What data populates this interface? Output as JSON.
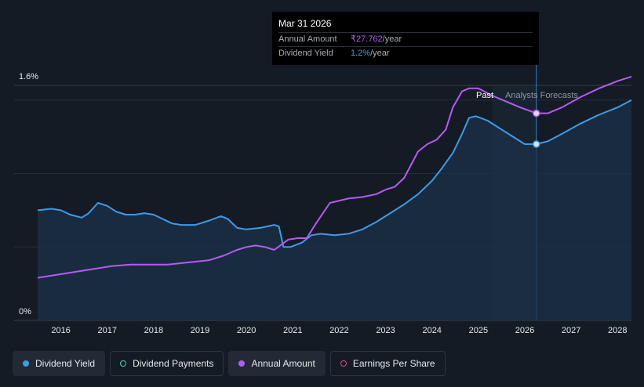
{
  "tooltip": {
    "date": "Mar 31 2026",
    "amount_label": "Annual Amount",
    "amount_value": "₹27.762",
    "amount_unit": "/year",
    "yield_label": "Dividend Yield",
    "yield_value": "1.2%",
    "yield_unit": "/year"
  },
  "past_label": "Past",
  "forecast_label": "Analysts Forecasts",
  "legend": [
    {
      "label": "Dividend Yield",
      "color": "#3d9be9",
      "style": "filled",
      "active": true
    },
    {
      "label": "Dividend Payments",
      "color": "#48d1b5",
      "style": "hollow",
      "active": false
    },
    {
      "label": "Annual Amount",
      "color": "#b55bf5",
      "style": "filled",
      "active": true
    },
    {
      "label": "Earnings Per Share",
      "color": "#e0457b",
      "style": "hollow",
      "active": false
    }
  ],
  "colors": {
    "background": "#151b24",
    "yield": "#3d9be9",
    "amount": "#b55bf5",
    "area": "#1b3148",
    "forecast_band": "#1c2a3b"
  },
  "chart_data": {
    "type": "line",
    "ylabels": [
      "1.6%",
      "0%"
    ],
    "ylim": [
      0,
      1.6
    ],
    "xlim": [
      2015.5,
      2028.3
    ],
    "x_ticks": [
      "2016",
      "2017",
      "2018",
      "2019",
      "2020",
      "2021",
      "2022",
      "2023",
      "2024",
      "2025",
      "2026",
      "2027",
      "2028"
    ],
    "past_end": 2025.3,
    "forecast_start": 2025.4,
    "highlight_x": 2026.25,
    "grid": true,
    "series": [
      {
        "name": "Dividend Yield",
        "unit": "%",
        "x": [
          2015.5,
          2015.8,
          2016.0,
          2016.2,
          2016.45,
          2016.6,
          2016.8,
          2017.0,
          2017.2,
          2017.4,
          2017.6,
          2017.8,
          2018.0,
          2018.2,
          2018.4,
          2018.6,
          2018.9,
          2019.2,
          2019.45,
          2019.6,
          2019.8,
          2020.0,
          2020.3,
          2020.6,
          2020.7,
          2020.8,
          2020.95,
          2021.2,
          2021.4,
          2021.6,
          2021.9,
          2022.2,
          2022.5,
          2022.8,
          2023.1,
          2023.4,
          2023.7,
          2024.0,
          2024.2,
          2024.45,
          2024.65,
          2024.8,
          2024.95,
          2025.2,
          2025.5,
          2025.75,
          2026.0,
          2026.25,
          2026.5,
          2026.8,
          2027.2,
          2027.6,
          2028.0,
          2028.3
        ],
        "values": [
          0.75,
          0.76,
          0.75,
          0.72,
          0.7,
          0.73,
          0.8,
          0.78,
          0.74,
          0.72,
          0.72,
          0.73,
          0.72,
          0.69,
          0.66,
          0.65,
          0.65,
          0.68,
          0.71,
          0.69,
          0.63,
          0.62,
          0.63,
          0.65,
          0.64,
          0.5,
          0.5,
          0.53,
          0.58,
          0.59,
          0.58,
          0.59,
          0.62,
          0.67,
          0.73,
          0.79,
          0.86,
          0.95,
          1.03,
          1.14,
          1.27,
          1.38,
          1.39,
          1.36,
          1.3,
          1.25,
          1.2,
          1.2,
          1.22,
          1.27,
          1.34,
          1.4,
          1.45,
          1.5
        ]
      },
      {
        "name": "Annual Amount",
        "unit": "₹/year",
        "x": [
          2015.5,
          2015.9,
          2016.3,
          2016.7,
          2017.1,
          2017.5,
          2017.9,
          2018.3,
          2018.6,
          2018.9,
          2019.2,
          2019.5,
          2019.8,
          2020.0,
          2020.2,
          2020.4,
          2020.6,
          2020.9,
          2021.1,
          2021.3,
          2021.5,
          2021.8,
          2022.2,
          2022.5,
          2022.8,
          2023.0,
          2023.2,
          2023.4,
          2023.7,
          2023.9,
          2024.1,
          2024.3,
          2024.45,
          2024.65,
          2024.8,
          2025.0,
          2025.3,
          2025.6,
          2025.9,
          2026.25,
          2026.5,
          2026.8,
          2027.2,
          2027.6,
          2028.0,
          2028.3
        ],
        "values": [
          0.29,
          0.31,
          0.33,
          0.35,
          0.37,
          0.38,
          0.38,
          0.38,
          0.39,
          0.4,
          0.41,
          0.44,
          0.48,
          0.5,
          0.51,
          0.5,
          0.48,
          0.55,
          0.56,
          0.56,
          0.66,
          0.8,
          0.83,
          0.84,
          0.86,
          0.89,
          0.91,
          0.97,
          1.15,
          1.2,
          1.23,
          1.3,
          1.45,
          1.56,
          1.58,
          1.58,
          1.53,
          1.49,
          1.45,
          1.41,
          1.41,
          1.45,
          1.52,
          1.58,
          1.63,
          1.66
        ]
      }
    ]
  }
}
